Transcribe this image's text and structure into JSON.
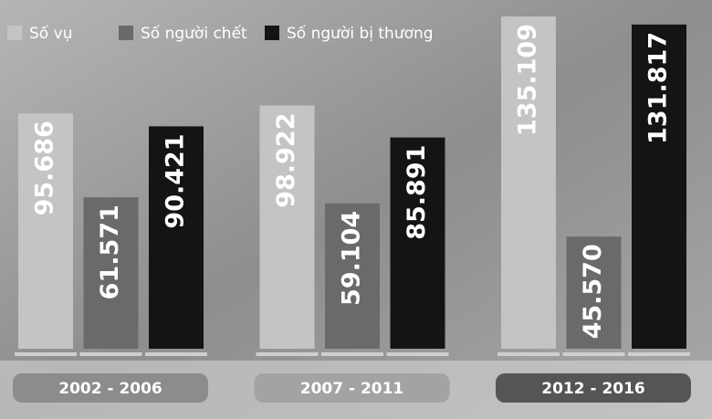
{
  "chart_data": {
    "type": "bar",
    "categories": [
      "2002 - 2006",
      "2007 - 2011",
      "2012 - 2016"
    ],
    "category_colors": [
      "#8c8c8c",
      "#a3a3a3",
      "#555555"
    ],
    "series": [
      {
        "name": "Số vụ",
        "color": "#c4c4c4",
        "values": [
          95686,
          98922,
          135109
        ],
        "value_labels": [
          "95.686",
          "98.922",
          "135.109"
        ]
      },
      {
        "name": "Số người chết",
        "color": "#6a6a6a",
        "values": [
          61571,
          59104,
          45570
        ],
        "value_labels": [
          "61.571",
          "59.104",
          "45.570"
        ]
      },
      {
        "name": "Số người bị thương",
        "color": "#141414",
        "values": [
          90421,
          85891,
          131817
        ],
        "value_labels": [
          "90.421",
          "85.891",
          "131.817"
        ]
      }
    ]
  }
}
